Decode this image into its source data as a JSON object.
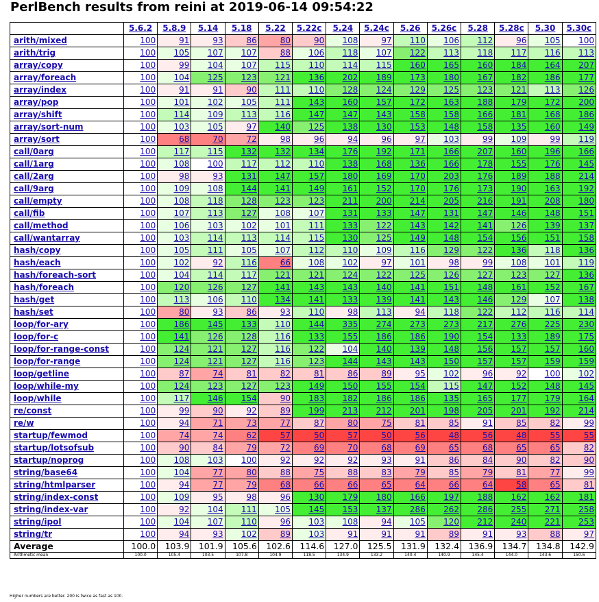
{
  "title": "PerlBench results from reini at 2019-06-14 09:54:22",
  "colors": {
    "link": "#1a0dab",
    "green_strong": "#33dd22",
    "green_light": "#ddffd0",
    "red_strong": "#ff3333",
    "red_light": "#ffd4d4"
  },
  "chart_data": {
    "type": "table",
    "title": "PerlBench results from reini at 2019-06-14 09:54:22",
    "versions": [
      "5.6.2",
      "5.8.9",
      "5.14",
      "5.18",
      "5.22",
      "5.22c",
      "5.24",
      "5.24c",
      "5.26",
      "5.26c",
      "5.28",
      "5.28c",
      "5.30",
      "5.30c"
    ],
    "rows": [
      {
        "name": "arith/mixed",
        "values": [
          100,
          91,
          93,
          86,
          80,
          90,
          108,
          97,
          110,
          106,
          112,
          96,
          105,
          100
        ]
      },
      {
        "name": "arith/trig",
        "values": [
          100,
          105,
          107,
          107,
          88,
          106,
          118,
          107,
          122,
          113,
          118,
          117,
          116,
          113
        ]
      },
      {
        "name": "array/copy",
        "values": [
          100,
          99,
          104,
          107,
          115,
          110,
          114,
          115,
          160,
          165,
          160,
          184,
          164,
          207
        ]
      },
      {
        "name": "array/foreach",
        "values": [
          100,
          104,
          125,
          123,
          121,
          136,
          202,
          189,
          173,
          180,
          167,
          182,
          186,
          177
        ]
      },
      {
        "name": "array/index",
        "values": [
          100,
          91,
          91,
          90,
          111,
          110,
          128,
          124,
          129,
          125,
          123,
          121,
          113,
          126
        ]
      },
      {
        "name": "array/pop",
        "values": [
          100,
          101,
          102,
          105,
          111,
          143,
          160,
          157,
          172,
          163,
          188,
          179,
          172,
          200
        ]
      },
      {
        "name": "array/shift",
        "values": [
          100,
          114,
          109,
          113,
          116,
          147,
          147,
          143,
          158,
          158,
          166,
          181,
          168,
          186
        ]
      },
      {
        "name": "array/sort-num",
        "values": [
          100,
          103,
          105,
          97,
          140,
          125,
          138,
          130,
          153,
          148,
          158,
          135,
          160,
          149
        ]
      },
      {
        "name": "array/sort",
        "values": [
          100,
          68,
          70,
          72,
          98,
          96,
          94,
          96,
          97,
          103,
          99,
          109,
          99,
          119
        ]
      },
      {
        "name": "call/0arg",
        "values": [
          100,
          117,
          115,
          132,
          132,
          134,
          176,
          192,
          171,
          166,
          207,
          160,
          196,
          166
        ]
      },
      {
        "name": "call/1arg",
        "values": [
          100,
          108,
          100,
          117,
          112,
          110,
          138,
          168,
          136,
          166,
          178,
          155,
          176,
          145
        ]
      },
      {
        "name": "call/2arg",
        "values": [
          100,
          98,
          93,
          131,
          147,
          157,
          180,
          169,
          170,
          203,
          176,
          189,
          188,
          214
        ]
      },
      {
        "name": "call/9arg",
        "values": [
          100,
          109,
          108,
          144,
          141,
          149,
          161,
          152,
          170,
          176,
          173,
          190,
          163,
          192
        ]
      },
      {
        "name": "call/empty",
        "values": [
          100,
          108,
          118,
          128,
          123,
          123,
          211,
          200,
          214,
          205,
          216,
          191,
          208,
          180
        ]
      },
      {
        "name": "call/fib",
        "values": [
          100,
          107,
          113,
          127,
          108,
          107,
          131,
          133,
          147,
          131,
          147,
          146,
          148,
          151
        ]
      },
      {
        "name": "call/method",
        "values": [
          100,
          106,
          103,
          102,
          101,
          111,
          133,
          122,
          143,
          142,
          141,
          126,
          139,
          137
        ]
      },
      {
        "name": "call/wantarray",
        "values": [
          100,
          103,
          114,
          113,
          114,
          115,
          130,
          125,
          149,
          148,
          154,
          156,
          151,
          158
        ]
      },
      {
        "name": "hash/copy",
        "values": [
          100,
          105,
          111,
          105,
          107,
          112,
          110,
          109,
          116,
          129,
          122,
          136,
          118,
          136
        ]
      },
      {
        "name": "hash/each",
        "values": [
          100,
          102,
          92,
          116,
          66,
          108,
          102,
          97,
          101,
          98,
          99,
          108,
          101,
          119
        ]
      },
      {
        "name": "hash/foreach-sort",
        "values": [
          100,
          104,
          114,
          117,
          121,
          121,
          124,
          122,
          125,
          126,
          127,
          123,
          127,
          136
        ]
      },
      {
        "name": "hash/foreach",
        "values": [
          100,
          120,
          126,
          127,
          141,
          143,
          143,
          140,
          141,
          151,
          148,
          161,
          152,
          167
        ]
      },
      {
        "name": "hash/get",
        "values": [
          100,
          113,
          106,
          110,
          134,
          141,
          133,
          139,
          141,
          143,
          146,
          129,
          107,
          138
        ]
      },
      {
        "name": "hash/set",
        "values": [
          100,
          80,
          93,
          86,
          93,
          110,
          98,
          113,
          94,
          118,
          122,
          112,
          116,
          114
        ]
      },
      {
        "name": "loop/for-ary",
        "values": [
          100,
          186,
          145,
          133,
          110,
          144,
          335,
          274,
          273,
          273,
          217,
          276,
          225,
          230
        ]
      },
      {
        "name": "loop/for-c",
        "values": [
          100,
          141,
          126,
          128,
          116,
          133,
          155,
          186,
          186,
          190,
          154,
          133,
          189,
          175
        ]
      },
      {
        "name": "loop/for-range-const",
        "values": [
          100,
          124,
          121,
          127,
          116,
          122,
          104,
          140,
          139,
          148,
          156,
          157,
          157,
          160
        ]
      },
      {
        "name": "loop/for-range",
        "values": [
          100,
          124,
          121,
          127,
          116,
          123,
          144,
          143,
          143,
          150,
          157,
          157,
          159,
          159
        ]
      },
      {
        "name": "loop/getline",
        "values": [
          100,
          87,
          74,
          81,
          82,
          81,
          86,
          89,
          95,
          102,
          96,
          92,
          100,
          102
        ]
      },
      {
        "name": "loop/while-my",
        "values": [
          100,
          124,
          123,
          127,
          123,
          149,
          150,
          155,
          154,
          115,
          147,
          152,
          148,
          145
        ]
      },
      {
        "name": "loop/while",
        "values": [
          100,
          117,
          146,
          154,
          90,
          183,
          182,
          186,
          186,
          135,
          165,
          177,
          179,
          164
        ]
      },
      {
        "name": "re/const",
        "values": [
          100,
          99,
          90,
          92,
          89,
          199,
          213,
          212,
          201,
          198,
          205,
          201,
          192,
          214
        ]
      },
      {
        "name": "re/w",
        "values": [
          100,
          94,
          71,
          73,
          77,
          87,
          80,
          75,
          81,
          85,
          91,
          85,
          82,
          99
        ]
      },
      {
        "name": "startup/fewmod",
        "values": [
          100,
          74,
          74,
          62,
          57,
          50,
          57,
          50,
          56,
          48,
          56,
          48,
          55,
          55
        ]
      },
      {
        "name": "startup/lotsofsub",
        "values": [
          100,
          90,
          84,
          79,
          72,
          69,
          70,
          68,
          69,
          65,
          68,
          65,
          65,
          82
        ]
      },
      {
        "name": "startup/noprog",
        "values": [
          100,
          108,
          103,
          100,
          92,
          92,
          92,
          93,
          91,
          86,
          84,
          90,
          82,
          90
        ]
      },
      {
        "name": "string/base64",
        "values": [
          100,
          104,
          77,
          80,
          88,
          75,
          88,
          83,
          79,
          85,
          79,
          81,
          77,
          99
        ]
      },
      {
        "name": "string/htmlparser",
        "values": [
          100,
          94,
          77,
          79,
          68,
          66,
          66,
          65,
          64,
          66,
          64,
          58,
          65,
          81
        ]
      },
      {
        "name": "string/index-const",
        "values": [
          100,
          109,
          95,
          98,
          96,
          130,
          179,
          180,
          166,
          197,
          188,
          162,
          162,
          181
        ]
      },
      {
        "name": "string/index-var",
        "values": [
          100,
          92,
          104,
          111,
          105,
          145,
          153,
          137,
          286,
          262,
          286,
          255,
          271,
          258
        ]
      },
      {
        "name": "string/ipol",
        "values": [
          100,
          104,
          107,
          110,
          96,
          103,
          108,
          94,
          105,
          120,
          212,
          240,
          221,
          253
        ]
      },
      {
        "name": "string/tr",
        "values": [
          100,
          94,
          93,
          102,
          89,
          103,
          91,
          91,
          91,
          89,
          91,
          93,
          88,
          97
        ]
      }
    ],
    "average": {
      "label": "Average",
      "values": [
        "100.0",
        "103.9",
        "101.9",
        "105.6",
        "102.6",
        "114.6",
        "127.0",
        "125.5",
        "131.9",
        "132.4",
        "136.9",
        "134.7",
        "134.8",
        "142.9"
      ]
    },
    "arithmetic_mean": {
      "label": "Arithmetic mean",
      "values": [
        "100.0",
        "105.4",
        "103.5",
        "107.8",
        "104.9",
        "118.5",
        "134.9",
        "133.2",
        "140.4",
        "140.9",
        "145.4",
        "144.0",
        "143.6",
        "150.6"
      ]
    }
  },
  "footnote": "Higher numbers are better. 200 is twice as fast as 100."
}
